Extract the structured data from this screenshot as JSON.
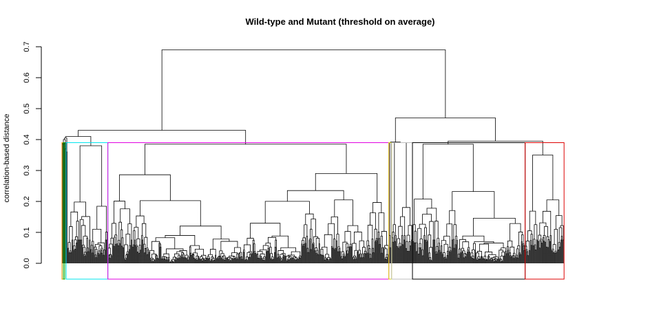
{
  "chart_data": {
    "type": "dendrogram",
    "title": "Wild-type and Mutant (threshold on average)",
    "xlabel": "",
    "ylabel": "correlation-based distance",
    "ylim": [
      0,
      0.7
    ],
    "y_ticks": [
      "0.0",
      "0.1",
      "0.2",
      "0.3",
      "0.4",
      "0.5",
      "0.6",
      "0.7"
    ],
    "threshold": 0.39,
    "leaf_count": 800,
    "cluster_boxes": [
      {
        "name": "cluster-orange",
        "color": "#ff9900",
        "leaf_range": [
          0,
          2
        ]
      },
      {
        "name": "cluster-green",
        "color": "#00aa00",
        "leaf_range": [
          2,
          4
        ]
      },
      {
        "name": "cluster-cyan",
        "color": "#00e5ee",
        "leaf_range": [
          6,
          66
        ]
      },
      {
        "name": "cluster-magenta",
        "color": "#e000e0",
        "leaf_range": [
          66,
          470
        ]
      },
      {
        "name": "cluster-yellow",
        "color": "#dddd00",
        "leaf_range": [
          470,
          474
        ]
      },
      {
        "name": "cluster-gray",
        "color": "#bebebe",
        "leaf_range": [
          474,
          504
        ]
      },
      {
        "name": "cluster-black",
        "color": "#000000",
        "leaf_range": [
          504,
          666
        ]
      },
      {
        "name": "cluster-red",
        "color": "#dd0000",
        "leaf_range": [
          666,
          722
        ]
      }
    ],
    "merges": [
      {
        "l": [
          0,
          8
        ],
        "r": [
          8,
          66
        ],
        "h": 0.41
      },
      {
        "l": [
          0,
          66
        ],
        "r": [
          66,
          470
        ],
        "h": 0.43
      },
      {
        "l": [
          474,
          504
        ],
        "r": [
          504,
          722
        ],
        "h": 0.47
      },
      {
        "l": [
          0,
          470
        ],
        "r": [
          470,
          722
        ],
        "h": 0.69
      }
    ]
  }
}
